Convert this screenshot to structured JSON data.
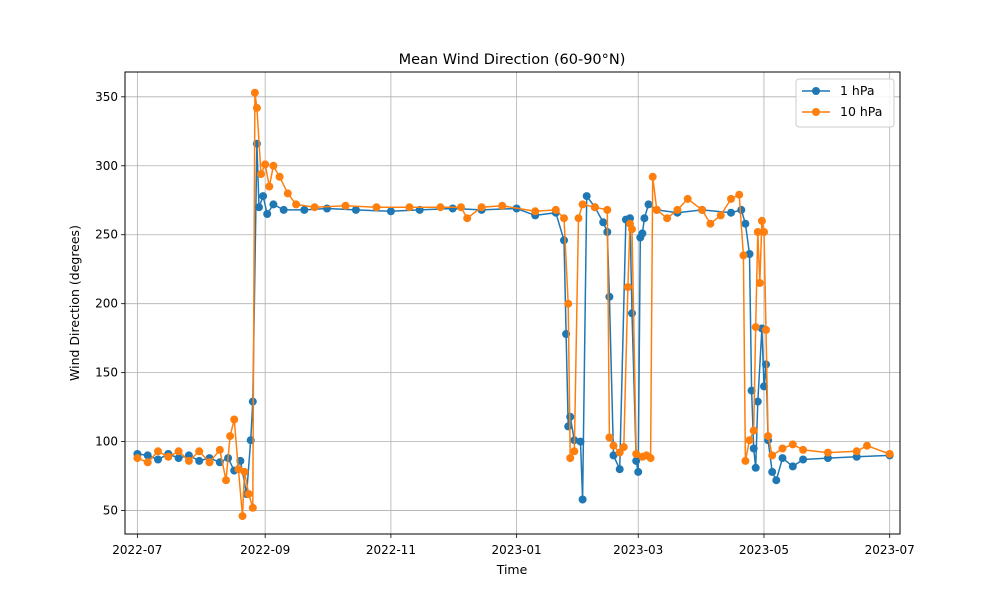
{
  "chart_data": {
    "type": "line",
    "title": "Mean Wind Direction (60-90°N)",
    "xlabel": "Time",
    "ylabel": "Wind Direction (degrees)",
    "xlim": [
      "2022-06-25",
      "2023-07-06"
    ],
    "ylim": [
      33,
      368
    ],
    "x_ticks": [
      "2022-07-01",
      "2022-09-01",
      "2022-11-01",
      "2023-01-01",
      "2023-03-01",
      "2023-05-01",
      "2023-07-01"
    ],
    "x_tick_labels": [
      "2022-07",
      "2022-09",
      "2022-11",
      "2023-01",
      "2023-03",
      "2023-05",
      "2023-07"
    ],
    "y_ticks": [
      50,
      100,
      150,
      200,
      250,
      300,
      350
    ],
    "grid": true,
    "legend_position": "top-right",
    "series": [
      {
        "name": "1 hPa",
        "color": "#1f77b4",
        "points": [
          [
            "2022-07-01",
            91
          ],
          [
            "2022-07-06",
            90
          ],
          [
            "2022-07-11",
            87
          ],
          [
            "2022-07-16",
            91
          ],
          [
            "2022-07-21",
            88
          ],
          [
            "2022-07-26",
            90
          ],
          [
            "2022-07-31",
            86
          ],
          [
            "2022-08-05",
            88
          ],
          [
            "2022-08-10",
            85
          ],
          [
            "2022-08-14",
            88
          ],
          [
            "2022-08-17",
            79
          ],
          [
            "2022-08-20",
            86
          ],
          [
            "2022-08-23",
            62
          ],
          [
            "2022-08-25",
            101
          ],
          [
            "2022-08-26",
            129
          ],
          [
            "2022-08-28",
            316
          ],
          [
            "2022-08-29",
            270
          ],
          [
            "2022-08-31",
            278
          ],
          [
            "2022-09-02",
            265
          ],
          [
            "2022-09-05",
            272
          ],
          [
            "2022-09-10",
            268
          ],
          [
            "2022-09-20",
            268
          ],
          [
            "2022-10-01",
            269
          ],
          [
            "2022-10-15",
            268
          ],
          [
            "2022-11-01",
            267
          ],
          [
            "2022-11-15",
            268
          ],
          [
            "2022-12-01",
            269
          ],
          [
            "2022-12-15",
            268
          ],
          [
            "2023-01-01",
            269
          ],
          [
            "2023-01-10",
            264
          ],
          [
            "2023-01-20",
            266
          ],
          [
            "2023-01-24",
            246
          ],
          [
            "2023-01-25",
            178
          ],
          [
            "2023-01-26",
            111
          ],
          [
            "2023-01-27",
            118
          ],
          [
            "2023-01-29",
            101
          ],
          [
            "2023-02-01",
            100
          ],
          [
            "2023-02-02",
            58
          ],
          [
            "2023-02-04",
            278
          ],
          [
            "2023-02-08",
            270
          ],
          [
            "2023-02-12",
            259
          ],
          [
            "2023-02-14",
            252
          ],
          [
            "2023-02-15",
            205
          ],
          [
            "2023-02-17",
            90
          ],
          [
            "2023-02-20",
            80
          ],
          [
            "2023-02-23",
            261
          ],
          [
            "2023-02-25",
            262
          ],
          [
            "2023-02-26",
            193
          ],
          [
            "2023-02-28",
            86
          ],
          [
            "2023-03-01",
            78
          ],
          [
            "2023-03-02",
            248
          ],
          [
            "2023-03-03",
            251
          ],
          [
            "2023-03-04",
            262
          ],
          [
            "2023-03-06",
            272
          ],
          [
            "2023-03-10",
            268
          ],
          [
            "2023-03-20",
            266
          ],
          [
            "2023-04-01",
            268
          ],
          [
            "2023-04-15",
            266
          ],
          [
            "2023-04-20",
            268
          ],
          [
            "2023-04-22",
            258
          ],
          [
            "2023-04-24",
            236
          ],
          [
            "2023-04-25",
            137
          ],
          [
            "2023-04-26",
            95
          ],
          [
            "2023-04-27",
            81
          ],
          [
            "2023-04-28",
            129
          ],
          [
            "2023-04-30",
            182
          ],
          [
            "2023-05-01",
            140
          ],
          [
            "2023-05-02",
            156
          ],
          [
            "2023-05-03",
            101
          ],
          [
            "2023-05-05",
            78
          ],
          [
            "2023-05-07",
            72
          ],
          [
            "2023-05-10",
            88
          ],
          [
            "2023-05-15",
            82
          ],
          [
            "2023-05-20",
            87
          ],
          [
            "2023-06-01",
            88
          ],
          [
            "2023-06-15",
            89
          ],
          [
            "2023-07-01",
            90
          ]
        ]
      },
      {
        "name": "10 hPa",
        "color": "#ff7f0e",
        "points": [
          [
            "2022-07-01",
            88
          ],
          [
            "2022-07-06",
            85
          ],
          [
            "2022-07-11",
            93
          ],
          [
            "2022-07-16",
            89
          ],
          [
            "2022-07-21",
            93
          ],
          [
            "2022-07-26",
            86
          ],
          [
            "2022-07-31",
            93
          ],
          [
            "2022-08-05",
            85
          ],
          [
            "2022-08-10",
            94
          ],
          [
            "2022-08-13",
            72
          ],
          [
            "2022-08-15",
            104
          ],
          [
            "2022-08-17",
            116
          ],
          [
            "2022-08-19",
            80
          ],
          [
            "2022-08-21",
            46
          ],
          [
            "2022-08-22",
            78
          ],
          [
            "2022-08-24",
            62
          ],
          [
            "2022-08-26",
            52
          ],
          [
            "2022-08-27",
            353
          ],
          [
            "2022-08-28",
            342
          ],
          [
            "2022-08-30",
            294
          ],
          [
            "2022-09-01",
            301
          ],
          [
            "2022-09-03",
            285
          ],
          [
            "2022-09-05",
            300
          ],
          [
            "2022-09-08",
            292
          ],
          [
            "2022-09-12",
            280
          ],
          [
            "2022-09-16",
            272
          ],
          [
            "2022-09-25",
            270
          ],
          [
            "2022-10-10",
            271
          ],
          [
            "2022-10-25",
            270
          ],
          [
            "2022-11-10",
            270
          ],
          [
            "2022-11-25",
            270
          ],
          [
            "2022-12-05",
            270
          ],
          [
            "2022-12-08",
            262
          ],
          [
            "2022-12-15",
            270
          ],
          [
            "2022-12-25",
            271
          ],
          [
            "2023-01-10",
            267
          ],
          [
            "2023-01-20",
            268
          ],
          [
            "2023-01-24",
            262
          ],
          [
            "2023-01-26",
            200
          ],
          [
            "2023-01-27",
            88
          ],
          [
            "2023-01-29",
            93
          ],
          [
            "2023-01-31",
            262
          ],
          [
            "2023-02-02",
            272
          ],
          [
            "2023-02-08",
            270
          ],
          [
            "2023-02-14",
            268
          ],
          [
            "2023-02-15",
            103
          ],
          [
            "2023-02-17",
            97
          ],
          [
            "2023-02-20",
            92
          ],
          [
            "2023-02-22",
            96
          ],
          [
            "2023-02-24",
            212
          ],
          [
            "2023-02-25",
            258
          ],
          [
            "2023-02-26",
            254
          ],
          [
            "2023-02-28",
            91
          ],
          [
            "2023-03-03",
            89
          ],
          [
            "2023-03-05",
            90
          ],
          [
            "2023-03-07",
            88
          ],
          [
            "2023-03-08",
            292
          ],
          [
            "2023-03-10",
            268
          ],
          [
            "2023-03-15",
            262
          ],
          [
            "2023-03-20",
            268
          ],
          [
            "2023-03-25",
            276
          ],
          [
            "2023-04-01",
            268
          ],
          [
            "2023-04-05",
            258
          ],
          [
            "2023-04-10",
            264
          ],
          [
            "2023-04-15",
            276
          ],
          [
            "2023-04-19",
            279
          ],
          [
            "2023-04-21",
            235
          ],
          [
            "2023-04-22",
            86
          ],
          [
            "2023-04-24",
            101
          ],
          [
            "2023-04-26",
            108
          ],
          [
            "2023-04-27",
            183
          ],
          [
            "2023-04-28",
            252
          ],
          [
            "2023-04-29",
            215
          ],
          [
            "2023-04-30",
            260
          ],
          [
            "2023-05-01",
            252
          ],
          [
            "2023-05-02",
            181
          ],
          [
            "2023-05-03",
            104
          ],
          [
            "2023-05-05",
            90
          ],
          [
            "2023-05-10",
            95
          ],
          [
            "2023-05-15",
            98
          ],
          [
            "2023-05-20",
            94
          ],
          [
            "2023-06-01",
            92
          ],
          [
            "2023-06-15",
            93
          ],
          [
            "2023-06-20",
            97
          ],
          [
            "2023-07-01",
            91
          ]
        ]
      }
    ]
  }
}
